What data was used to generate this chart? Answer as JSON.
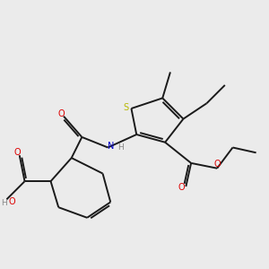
{
  "bg_color": "#ebebeb",
  "bond_color": "#1a1a1a",
  "S_color": "#b8b800",
  "N_color": "#0000cc",
  "O_color": "#dd0000",
  "H_color": "#888888",
  "line_width": 1.4,
  "figsize": [
    3.0,
    3.0
  ],
  "dpi": 100,
  "xlim": [
    0,
    10
  ],
  "ylim": [
    0,
    10
  ]
}
